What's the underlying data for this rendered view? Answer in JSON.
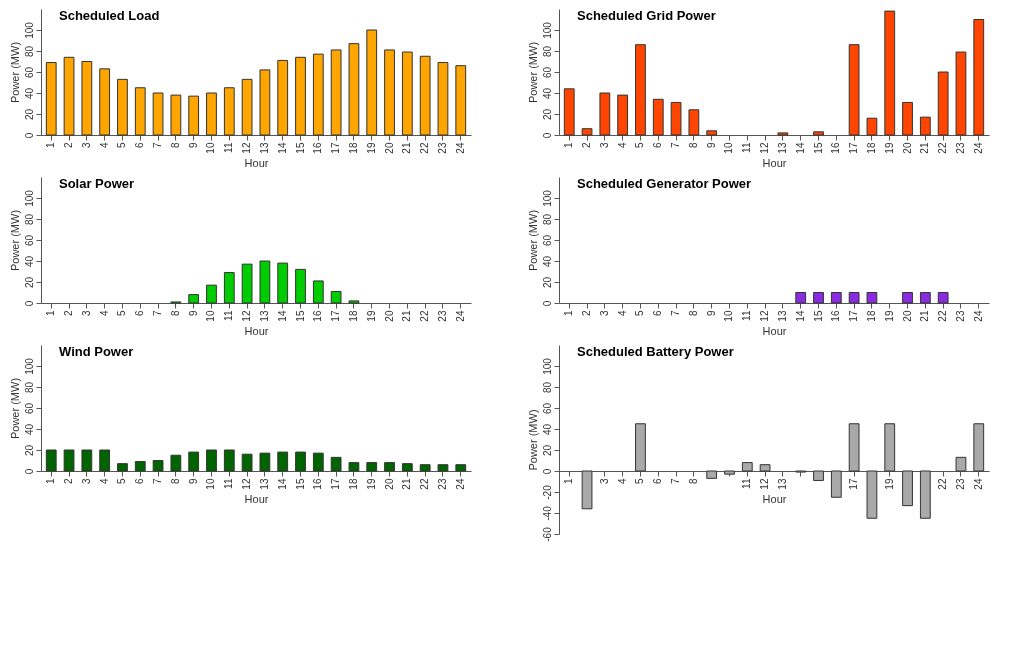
{
  "chart_data": [
    {
      "type": "bar",
      "title": "Scheduled Load",
      "xlabel": "Hour",
      "ylabel": "Power (MW)",
      "categories": [
        "1",
        "2",
        "3",
        "4",
        "5",
        "6",
        "7",
        "8",
        "9",
        "10",
        "11",
        "12",
        "13",
        "14",
        "15",
        "16",
        "17",
        "18",
        "19",
        "20",
        "21",
        "22",
        "23",
        "24"
      ],
      "color": "#ffa500",
      "values": [
        69,
        74,
        70,
        63,
        53,
        45,
        40,
        38,
        37,
        40,
        45,
        53,
        62,
        71,
        74,
        77,
        81,
        87,
        100,
        81,
        79,
        75,
        69,
        66
      ],
      "ylim": [
        0,
        120
      ],
      "yticks": [
        0,
        20,
        40,
        60,
        80,
        100
      ]
    },
    {
      "type": "bar",
      "title": "Scheduled Grid Power",
      "xlabel": "Hour",
      "ylabel": "Power (MW)",
      "categories": [
        "1",
        "2",
        "3",
        "4",
        "5",
        "6",
        "7",
        "8",
        "9",
        "10",
        "11",
        "12",
        "13",
        "14",
        "15",
        "16",
        "17",
        "18",
        "19",
        "20",
        "21",
        "22",
        "23",
        "24"
      ],
      "color": "#ff4500",
      "values": [
        44,
        6,
        40,
        38,
        86,
        34,
        31,
        24,
        4,
        0,
        0,
        0,
        2,
        0,
        3,
        0,
        86,
        16,
        118,
        31,
        17,
        60,
        79,
        110
      ],
      "ylim": [
        0,
        120
      ],
      "yticks": [
        0,
        20,
        40,
        60,
        80,
        100
      ]
    },
    {
      "type": "bar",
      "title": "Solar Power",
      "xlabel": "Hour",
      "ylabel": "Power (MW)",
      "categories": [
        "1",
        "2",
        "3",
        "4",
        "5",
        "6",
        "7",
        "8",
        "9",
        "10",
        "11",
        "12",
        "13",
        "14",
        "15",
        "16",
        "17",
        "18",
        "19",
        "20",
        "21",
        "22",
        "23",
        "24"
      ],
      "color": "#00cd00",
      "values": [
        0,
        0,
        0,
        0,
        0,
        0,
        0,
        1,
        8,
        17,
        29,
        37,
        40,
        38,
        32,
        21,
        11,
        2,
        0,
        0,
        0,
        0,
        0,
        0
      ],
      "ylim": [
        0,
        120
      ],
      "yticks": [
        0,
        20,
        40,
        60,
        80,
        100
      ]
    },
    {
      "type": "bar",
      "title": "Scheduled Generator Power",
      "xlabel": "Hour",
      "ylabel": "Power (MW)",
      "categories": [
        "1",
        "2",
        "3",
        "4",
        "5",
        "6",
        "7",
        "8",
        "9",
        "10",
        "11",
        "12",
        "13",
        "14",
        "15",
        "16",
        "17",
        "18",
        "19",
        "20",
        "21",
        "22",
        "23",
        "24"
      ],
      "color": "#8a2be2",
      "values": [
        0,
        0,
        0,
        0,
        0,
        0,
        0,
        0,
        0,
        0,
        0,
        0,
        0,
        10,
        10,
        10,
        10,
        10,
        0,
        10,
        10,
        10,
        0,
        0
      ],
      "ylim": [
        0,
        120
      ],
      "yticks": [
        0,
        20,
        40,
        60,
        80,
        100
      ]
    },
    {
      "type": "bar",
      "title": "Wind Power",
      "xlabel": "Hour",
      "ylabel": "Power (MW)",
      "categories": [
        "1",
        "2",
        "3",
        "4",
        "5",
        "6",
        "7",
        "8",
        "9",
        "10",
        "11",
        "12",
        "13",
        "14",
        "15",
        "16",
        "17",
        "18",
        "19",
        "20",
        "21",
        "22",
        "23",
        "24"
      ],
      "color": "#006400",
      "values": [
        20,
        20,
        20,
        20,
        7,
        9,
        10,
        15,
        18,
        20,
        20,
        16,
        17,
        18,
        18,
        17,
        13,
        8,
        8,
        8,
        7,
        6,
        6,
        6
      ],
      "ylim": [
        0,
        120
      ],
      "yticks": [
        0,
        20,
        40,
        60,
        80,
        100
      ]
    },
    {
      "type": "bar",
      "title": "Scheduled Battery Power",
      "xlabel": "Hour",
      "ylabel": "Power (MW)",
      "categories": [
        "1",
        null,
        "3",
        "4",
        "5",
        "6",
        "7",
        "8",
        null,
        null,
        "11",
        "12",
        "13",
        null,
        null,
        null,
        "17",
        null,
        "19",
        null,
        null,
        "22",
        "23",
        "24"
      ],
      "color": "#a9a9a9",
      "values": [
        0,
        -36,
        0,
        0,
        45,
        0,
        0,
        0,
        -7,
        -3,
        8,
        6,
        0,
        -1,
        -9,
        -25,
        45,
        -45,
        45,
        -33,
        -45,
        0,
        13,
        45
      ],
      "ylim": [
        -60,
        120
      ],
      "yticks": [
        -60,
        -40,
        -20,
        0,
        20,
        40,
        60,
        80,
        100
      ]
    }
  ]
}
